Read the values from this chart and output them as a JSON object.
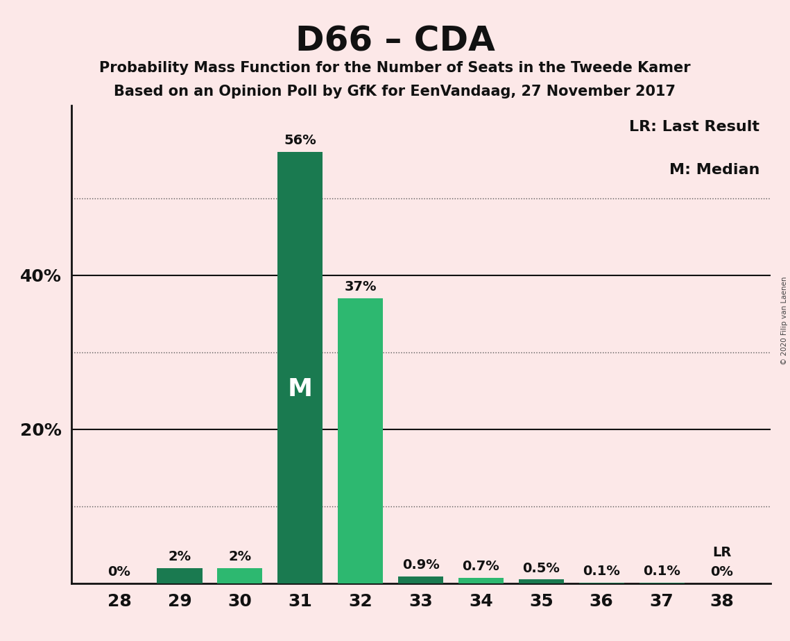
{
  "title": "D66 – CDA",
  "subtitle1": "Probability Mass Function for the Number of Seats in the Tweede Kamer",
  "subtitle2": "Based on an Opinion Poll by GfK for EenVandaag, 27 November 2017",
  "copyright": "© 2020 Filip van Laenen",
  "seats": [
    28,
    29,
    30,
    31,
    32,
    33,
    34,
    35,
    36,
    37,
    38
  ],
  "values": [
    0.0,
    2.0,
    2.0,
    56.0,
    37.0,
    0.9,
    0.7,
    0.5,
    0.1,
    0.1,
    0.0
  ],
  "labels": [
    "0%",
    "2%",
    "2%",
    "56%",
    "37%",
    "0.9%",
    "0.7%",
    "0.5%",
    "0.1%",
    "0.1%",
    "0%"
  ],
  "bar_colors": [
    "#1a7a50",
    "#1a7a50",
    "#2db870",
    "#1a7a50",
    "#2db870",
    "#1a7a50",
    "#2db870",
    "#1a7a50",
    "#1a7a50",
    "#1a7a50",
    "#1a7a50"
  ],
  "median_seat": 31,
  "lr_seat": 38,
  "background_color": "#fce8e8",
  "ylim": [
    0,
    62
  ],
  "solid_gridlines": [
    20,
    40
  ],
  "dotted_gridlines": [
    10,
    30,
    50
  ],
  "ytick_positions": [
    20,
    40
  ],
  "ytick_labels": [
    "20%",
    "40%"
  ],
  "legend_lr": "LR: Last Result",
  "legend_m": "M: Median",
  "lr_label": "LR",
  "m_label": "M"
}
